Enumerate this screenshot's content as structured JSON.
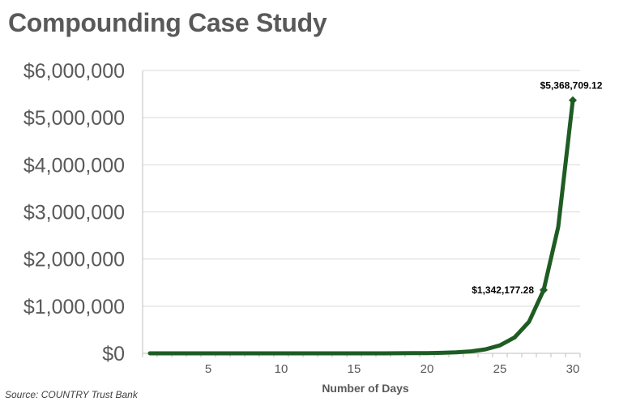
{
  "title": "Compounding Case Study",
  "source": "Source: COUNTRY Trust Bank",
  "colors": {
    "series": "#1e5c23",
    "grid": "#d9d9d9",
    "axis": "#595959",
    "text": "#595959"
  },
  "chart_data": {
    "type": "line",
    "title": "Compounding Case Study",
    "xlabel": "Number of Days",
    "ylabel": "",
    "xlim": [
      0.5,
      30.5
    ],
    "ylim": [
      0,
      6000000
    ],
    "yticks": [
      0,
      1000000,
      2000000,
      3000000,
      4000000,
      5000000,
      6000000
    ],
    "ytick_labels": [
      "$0",
      "$1,000,000",
      "$2,000,000",
      "$3,000,000",
      "$4,000,000",
      "$5,000,000",
      "$6,000,000"
    ],
    "xticks": [
      5,
      10,
      15,
      20,
      25,
      30
    ],
    "xtick_labels": [
      "5",
      "10",
      "15",
      "20",
      "25",
      "30"
    ],
    "grid": "horizontal",
    "legend": "none",
    "series": [
      {
        "x": [
          1,
          2,
          3,
          4,
          5,
          6,
          7,
          8,
          9,
          10,
          11,
          12,
          13,
          14,
          15,
          16,
          17,
          18,
          19,
          20,
          21,
          22,
          23,
          24,
          25,
          26,
          27,
          28,
          29,
          30
        ],
        "values": [
          0.01,
          0.02,
          0.04,
          0.08,
          0.16,
          0.32,
          0.64,
          1.28,
          2.56,
          5.12,
          10.24,
          20.48,
          40.96,
          81.92,
          163.84,
          327.68,
          655.36,
          1310.72,
          2621.44,
          5242.88,
          10485.76,
          20971.52,
          41943.04,
          83886.08,
          167772.16,
          335544.32,
          671088.64,
          1342177.28,
          2684354.56,
          5368709.12
        ]
      }
    ],
    "data_labels": [
      {
        "x": 28,
        "y": 1342177.28,
        "text": "$1,342,177.28"
      },
      {
        "x": 30,
        "y": 5368709.12,
        "text": "$5,368,709.12"
      }
    ]
  }
}
